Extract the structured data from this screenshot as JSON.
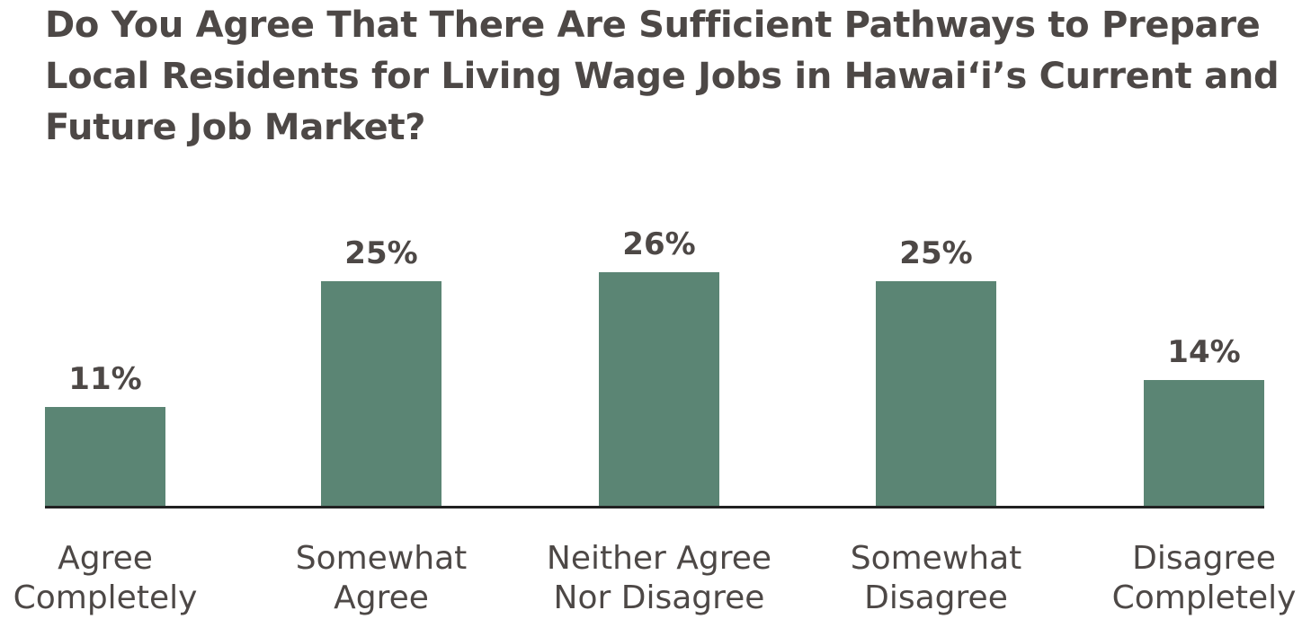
{
  "chart_data": {
    "type": "bar",
    "title": "Do You Agree That There Are Sufficient Pathways to Prepare Local Residents for Living Wage Jobs in Hawai‘i’s Current and Future Job Market?",
    "categories": [
      [
        "Agree",
        "Completely"
      ],
      [
        "Somewhat",
        "Agree"
      ],
      [
        "Neither Agree",
        "Nor Disagree"
      ],
      [
        "Somewhat",
        "Disagree"
      ],
      [
        "Disagree",
        "Completely"
      ]
    ],
    "values": [
      11,
      25,
      26,
      25,
      14
    ],
    "data_labels": [
      "11%",
      "25%",
      "26%",
      "25%",
      "14%"
    ],
    "unit": "%",
    "ylim": [
      0,
      30
    ],
    "grid": false,
    "colors": {
      "bar": "#5b8574",
      "text": "#4d4846",
      "axis": "#222222"
    }
  }
}
